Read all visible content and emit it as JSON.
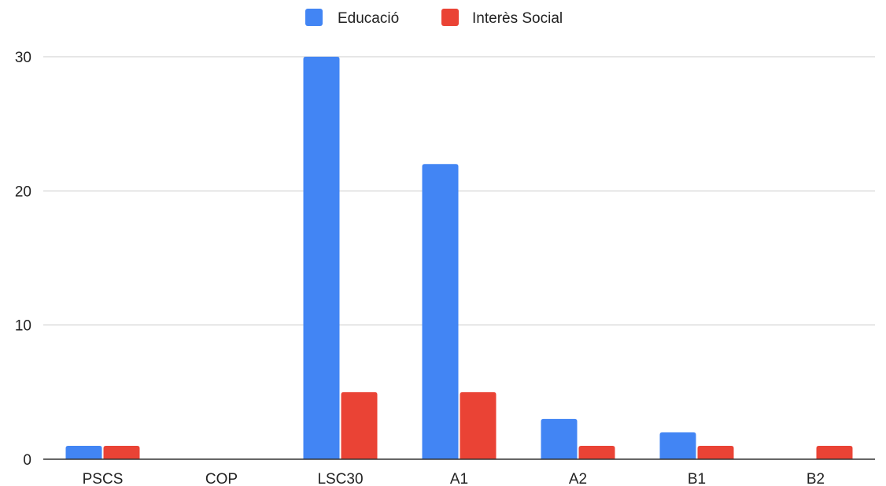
{
  "chart_data": {
    "type": "bar",
    "categories": [
      "PSCS",
      "COP",
      "LSC30",
      "A1",
      "A2",
      "B1",
      "B2"
    ],
    "series": [
      {
        "name": "Educació",
        "values": [
          1,
          0,
          30,
          22,
          3,
          2,
          0
        ],
        "color": "#4285f4"
      },
      {
        "name": "Interès Social",
        "values": [
          1,
          0,
          5,
          5,
          1,
          1,
          1
        ],
        "color": "#ea4335"
      }
    ],
    "ylim": [
      0,
      30
    ],
    "yticks": [
      0,
      10,
      20,
      30
    ],
    "xlabel": "",
    "ylabel": "",
    "legend_position": "top-center",
    "grid": true,
    "gridline_color": "#cccccc",
    "axis_color": "#333333"
  }
}
